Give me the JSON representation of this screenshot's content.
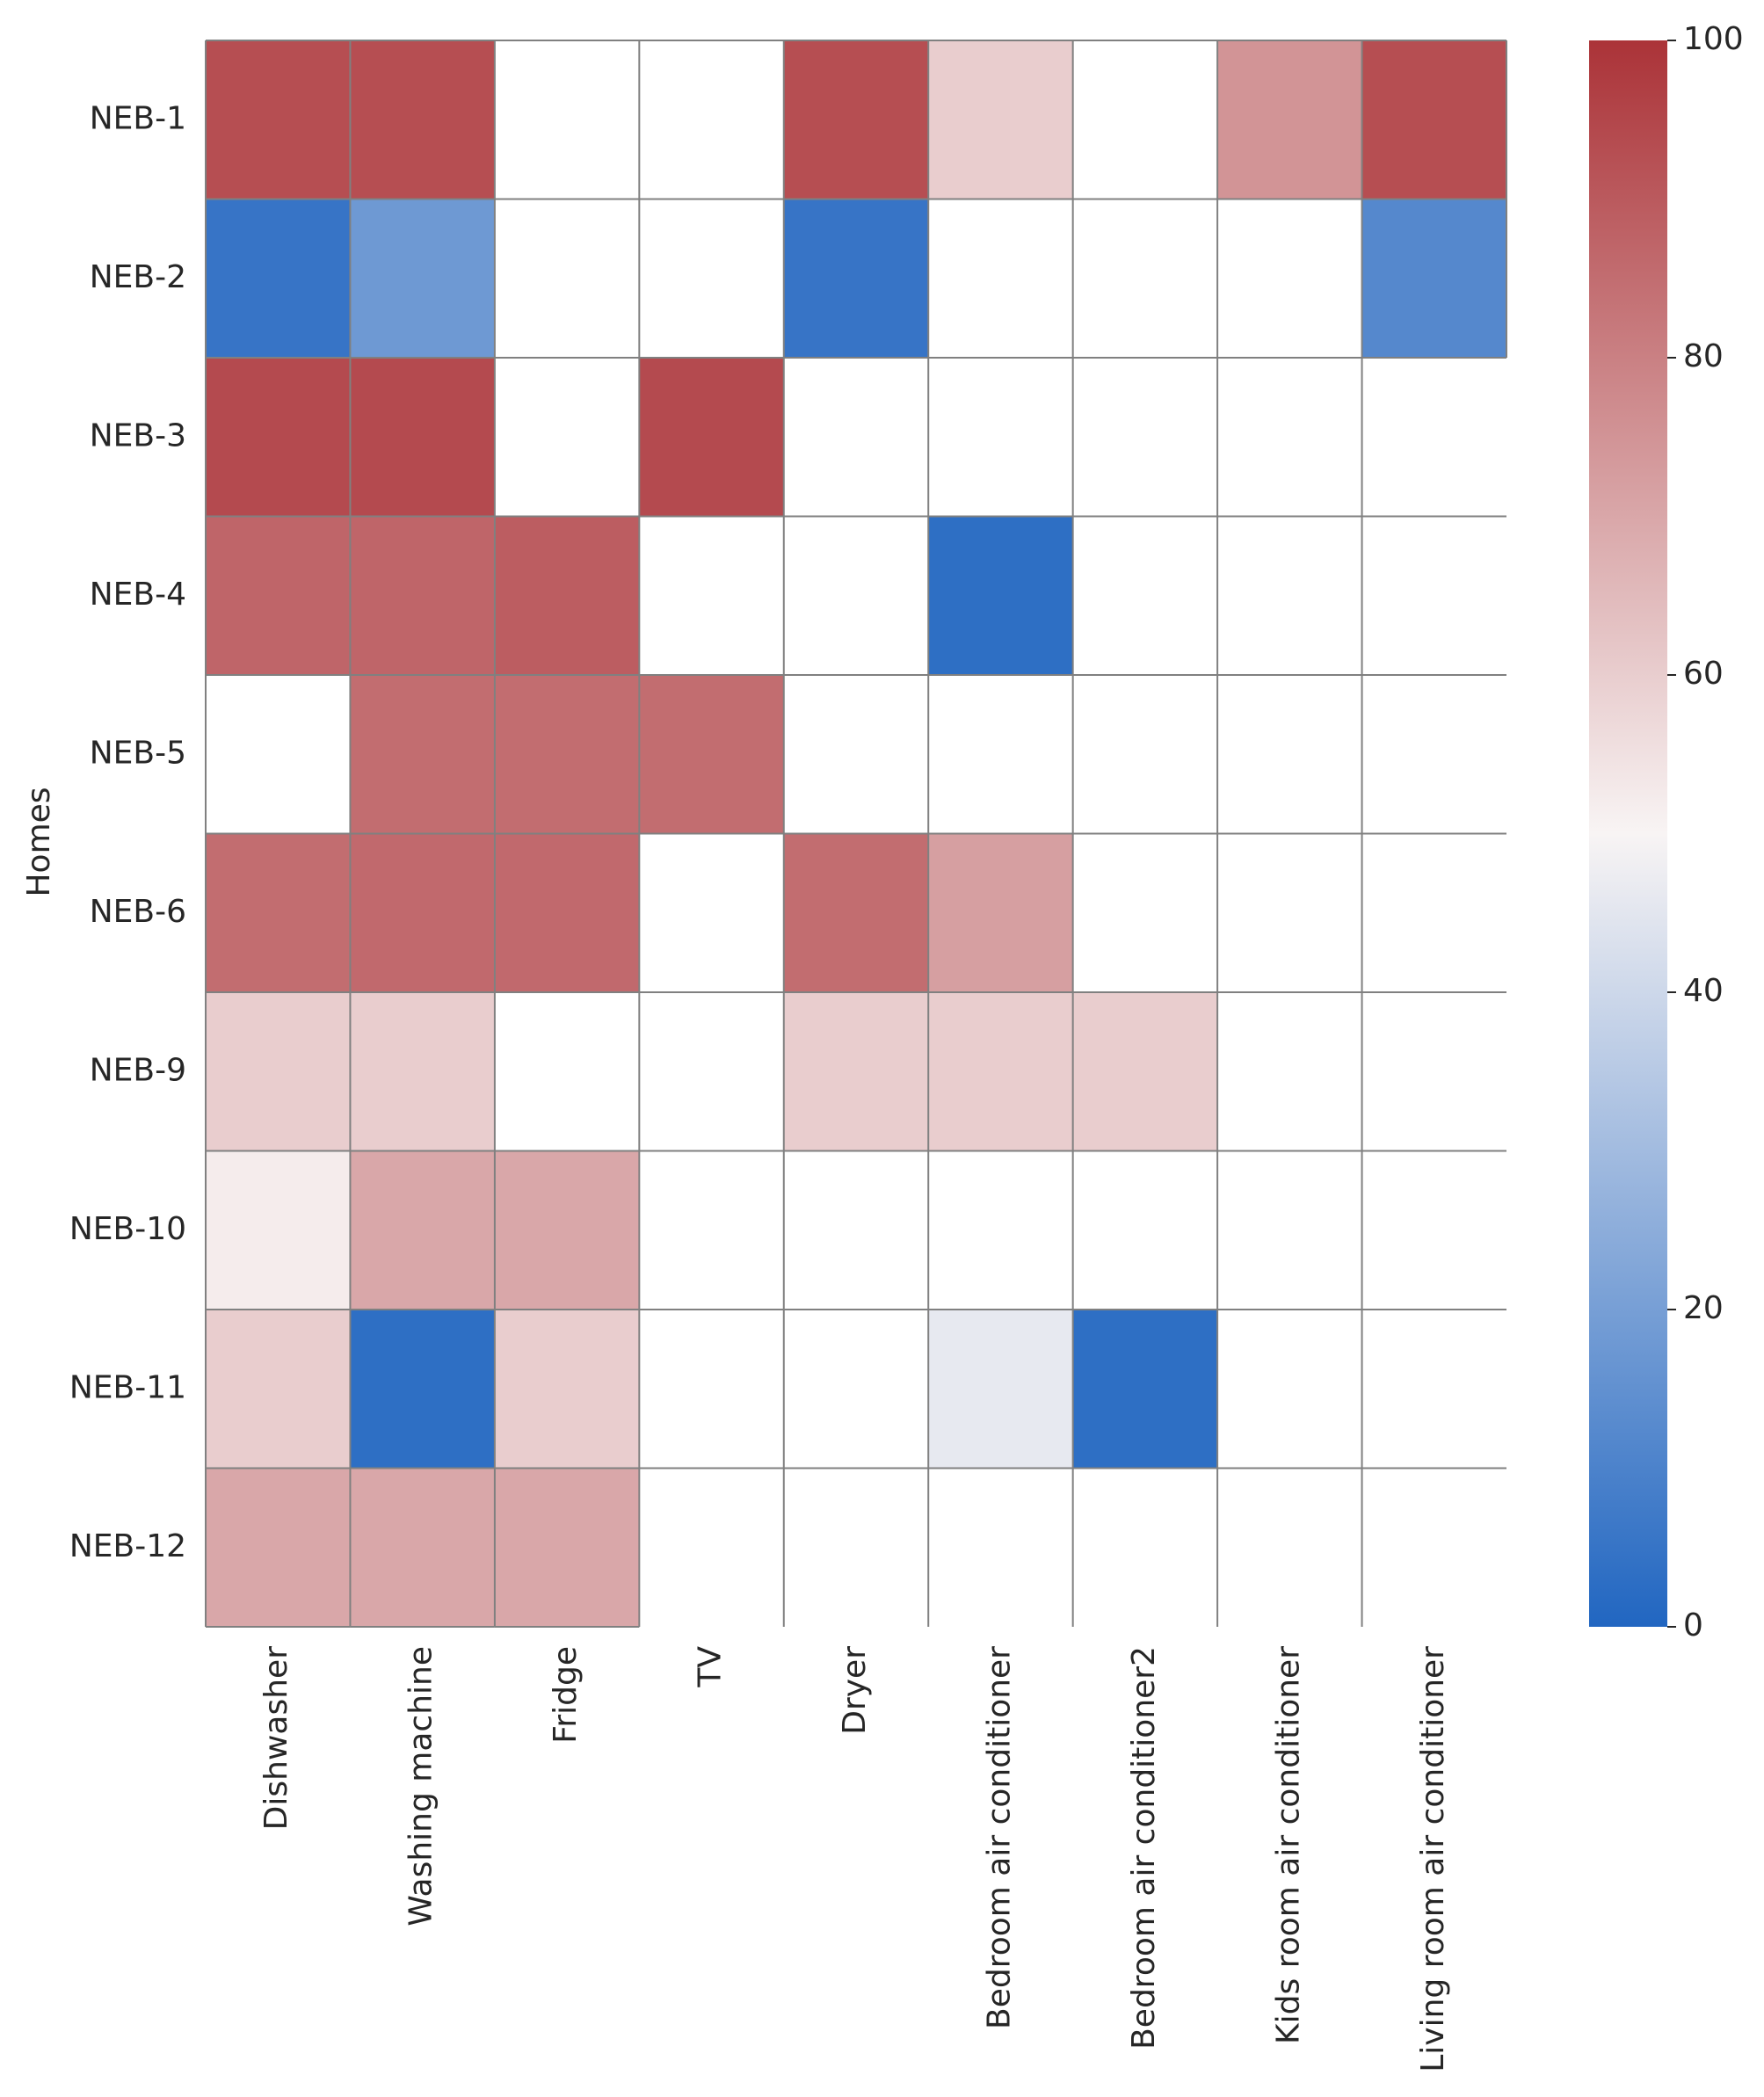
{
  "chart_data": {
    "type": "heatmap",
    "title": "",
    "xlabel": "",
    "ylabel": "Homes",
    "rows": [
      "NEB-1",
      "NEB-2",
      "NEB-3",
      "NEB-4",
      "NEB-5",
      "NEB-6",
      "NEB-9",
      "NEB-10",
      "NEB-11",
      "NEB-12"
    ],
    "columns": [
      "Dishwasher",
      "Washing machine",
      "Fridge",
      "TV",
      "Dryer",
      "Bedroom air conditioner",
      "Bedroom air conditioner2",
      "Kids room air conditioner",
      "Living room air conditioner"
    ],
    "values": [
      [
        93,
        93,
        null,
        null,
        93,
        60,
        null,
        75,
        93
      ],
      [
        5,
        18,
        null,
        null,
        5,
        null,
        null,
        null,
        12
      ],
      [
        94,
        94,
        null,
        94,
        null,
        null,
        null,
        null,
        null
      ],
      [
        87,
        87,
        89,
        null,
        null,
        3,
        null,
        null,
        null
      ],
      [
        null,
        85,
        85,
        85,
        null,
        null,
        null,
        null,
        null
      ],
      [
        85,
        86,
        86,
        null,
        85,
        72,
        null,
        null,
        null
      ],
      [
        60,
        60,
        null,
        null,
        60,
        60,
        60,
        null,
        null
      ],
      [
        52,
        70,
        70,
        null,
        null,
        null,
        null,
        null,
        null
      ],
      [
        60,
        3,
        60,
        null,
        null,
        46,
        3,
        null,
        null
      ],
      [
        70,
        70,
        70,
        null,
        null,
        null,
        null,
        null,
        null
      ]
    ],
    "colorbar": {
      "min": 0,
      "max": 100,
      "ticks": [
        "0",
        "20",
        "40",
        "60",
        "80",
        "100"
      ],
      "colors": [
        "#2166c1",
        "#f8f4f4",
        "#ab3338"
      ]
    },
    "grid_color": "#808080"
  }
}
